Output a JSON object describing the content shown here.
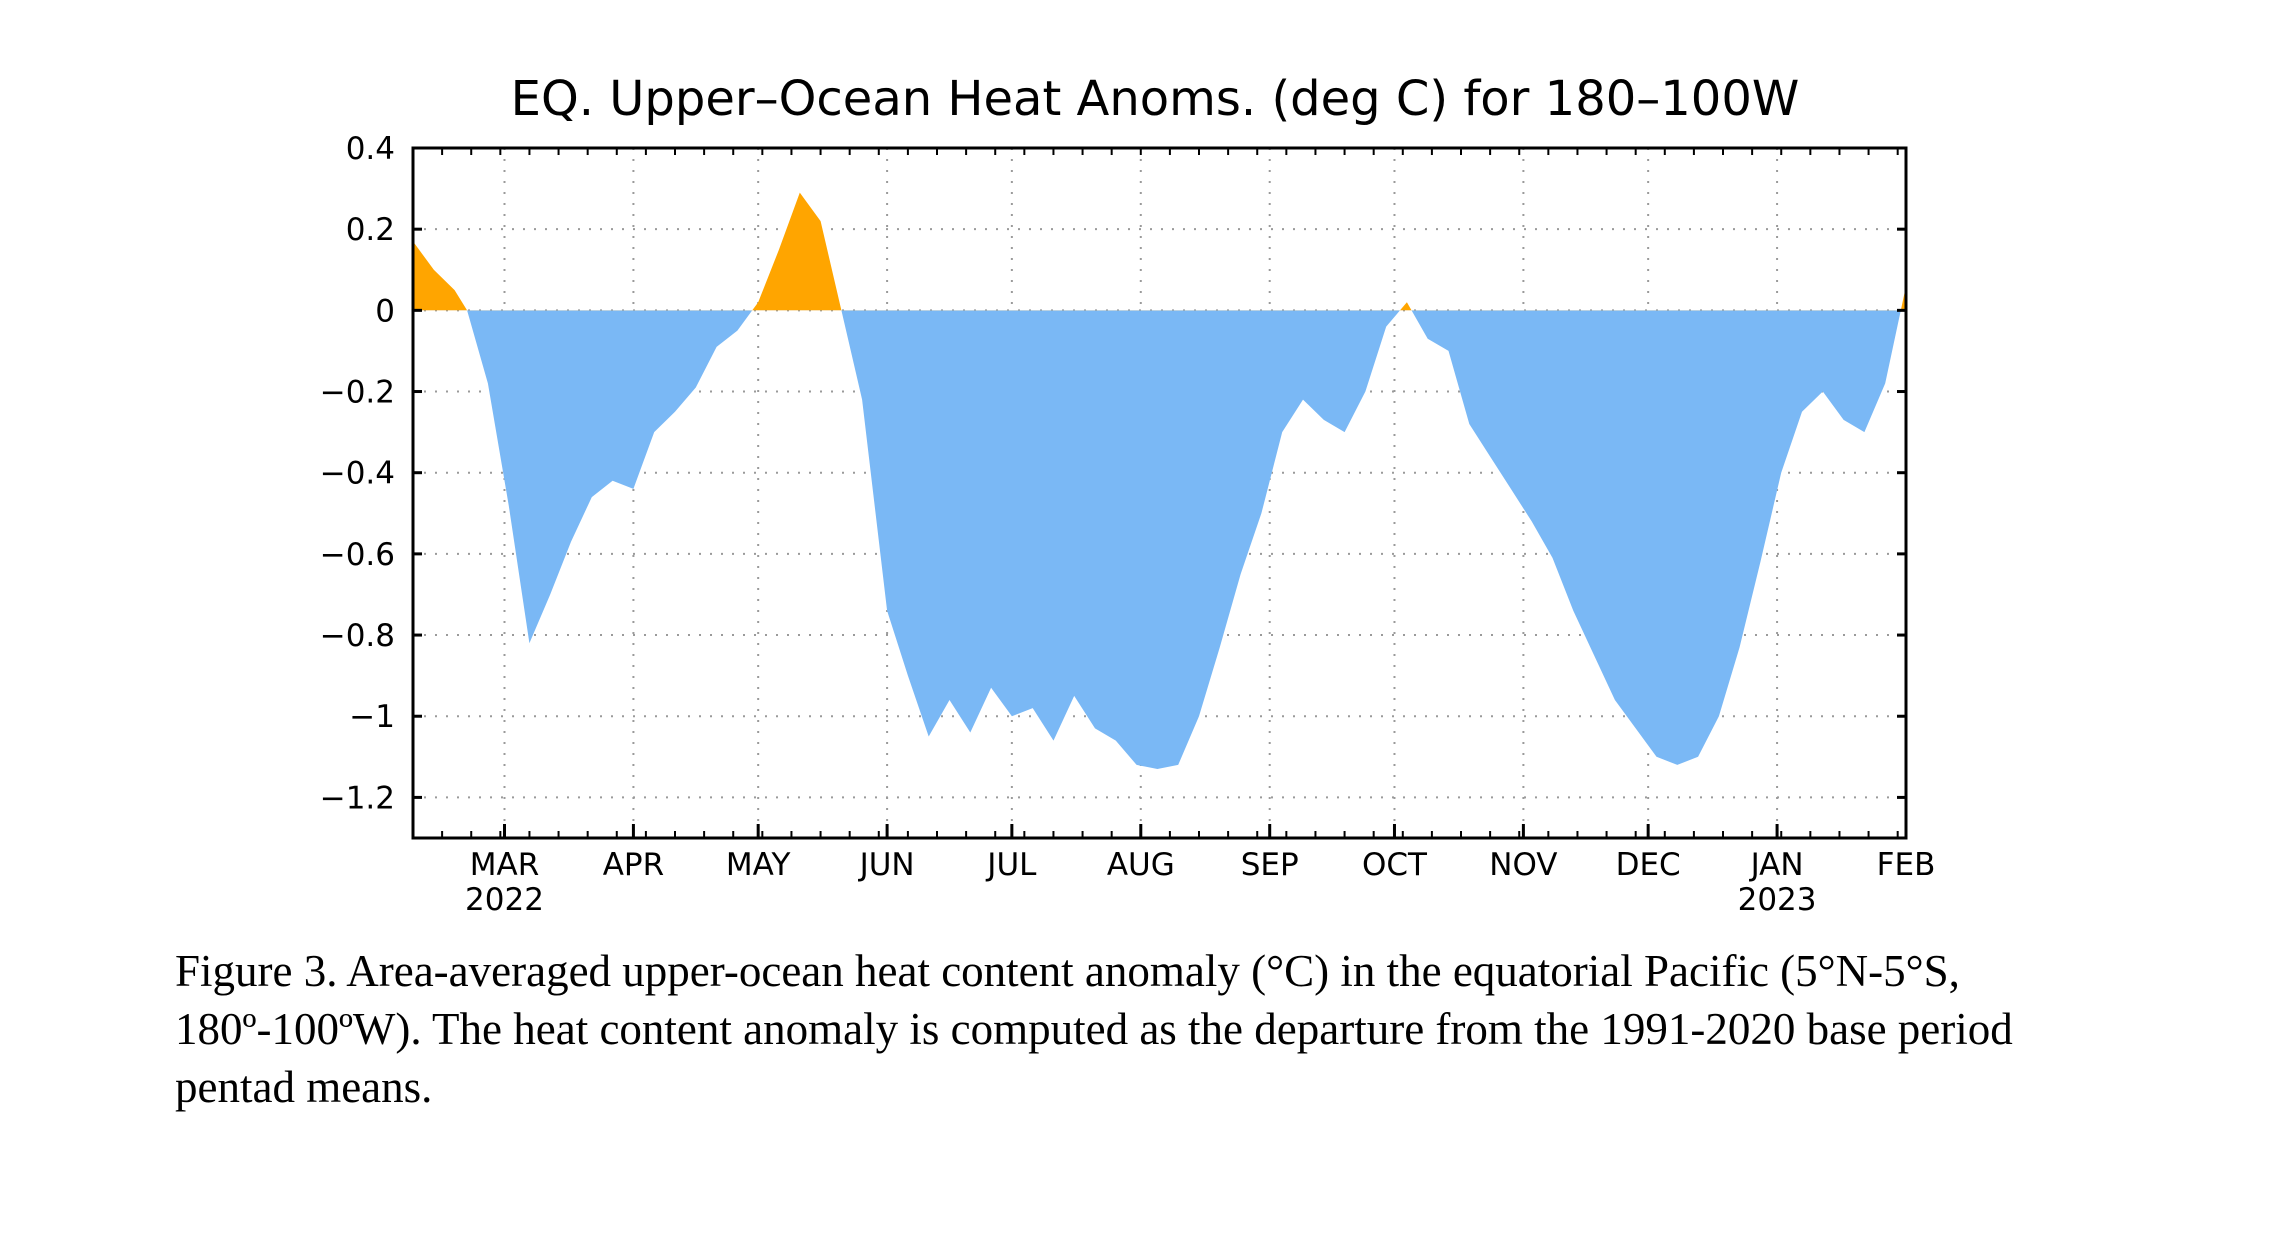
{
  "chart_data": {
    "type": "area",
    "title": "EQ. Upper–Ocean Heat Anoms. (deg C) for 180–100W",
    "xlabel": "",
    "ylabel": "",
    "ylim": [
      -1.3,
      0.4
    ],
    "yticks": [
      0.4,
      0.2,
      0,
      -0.2,
      -0.4,
      -0.6,
      -0.8,
      -1,
      -1.2
    ],
    "ytick_labels": [
      "0.4",
      "0.2",
      "0",
      "−0.2",
      "−0.4",
      "−0.6",
      "−0.8",
      "−1",
      "−1.2"
    ],
    "xlim": [
      "2022-02-07",
      "2023-02-01"
    ],
    "xticks": [
      {
        "date": "2022-03-01",
        "label": "MAR",
        "year": "2022"
      },
      {
        "date": "2022-04-01",
        "label": "APR",
        "year": ""
      },
      {
        "date": "2022-05-01",
        "label": "MAY",
        "year": ""
      },
      {
        "date": "2022-06-01",
        "label": "JUN",
        "year": ""
      },
      {
        "date": "2022-07-01",
        "label": "JUL",
        "year": ""
      },
      {
        "date": "2022-08-01",
        "label": "AUG",
        "year": ""
      },
      {
        "date": "2022-09-01",
        "label": "SEP",
        "year": ""
      },
      {
        "date": "2022-10-01",
        "label": "OCT",
        "year": ""
      },
      {
        "date": "2022-11-01",
        "label": "NOV",
        "year": ""
      },
      {
        "date": "2022-12-01",
        "label": "DEC",
        "year": ""
      },
      {
        "date": "2023-01-01",
        "label": "JAN",
        "year": "2023"
      },
      {
        "date": "2023-02-01",
        "label": "FEB",
        "year": ""
      }
    ],
    "grid": true,
    "positive_color": "#ffa500",
    "negative_color": "#7ab8f5",
    "x": [
      "2022-02-07",
      "2022-02-12",
      "2022-02-17",
      "2022-02-20",
      "2022-02-25",
      "2022-03-02",
      "2022-03-07",
      "2022-03-12",
      "2022-03-17",
      "2022-03-22",
      "2022-03-27",
      "2022-04-01",
      "2022-04-06",
      "2022-04-11",
      "2022-04-16",
      "2022-04-21",
      "2022-04-26",
      "2022-05-01",
      "2022-05-06",
      "2022-05-11",
      "2022-05-16",
      "2022-05-21",
      "2022-05-26",
      "2022-06-01",
      "2022-06-06",
      "2022-06-11",
      "2022-06-16",
      "2022-06-21",
      "2022-06-26",
      "2022-07-01",
      "2022-07-06",
      "2022-07-11",
      "2022-07-16",
      "2022-07-21",
      "2022-07-26",
      "2022-07-31",
      "2022-08-05",
      "2022-08-10",
      "2022-08-15",
      "2022-08-20",
      "2022-08-25",
      "2022-08-30",
      "2022-09-04",
      "2022-09-09",
      "2022-09-14",
      "2022-09-19",
      "2022-09-24",
      "2022-09-29",
      "2022-10-04",
      "2022-10-09",
      "2022-10-14",
      "2022-10-19",
      "2022-10-24",
      "2022-10-29",
      "2022-11-03",
      "2022-11-08",
      "2022-11-13",
      "2022-11-18",
      "2022-11-23",
      "2022-11-28",
      "2022-12-03",
      "2022-12-08",
      "2022-12-13",
      "2022-12-18",
      "2022-12-23",
      "2022-12-28",
      "2023-01-02",
      "2023-01-07",
      "2023-01-12",
      "2023-01-17",
      "2023-01-22",
      "2023-01-27",
      "2023-02-01"
    ],
    "values": [
      0.17,
      0.1,
      0.05,
      0.0,
      -0.18,
      -0.48,
      -0.82,
      -0.7,
      -0.57,
      -0.46,
      -0.42,
      -0.44,
      -0.3,
      -0.25,
      -0.19,
      -0.09,
      -0.05,
      0.02,
      0.15,
      0.29,
      0.22,
      0.0,
      -0.22,
      -0.74,
      -0.9,
      -1.05,
      -0.96,
      -1.04,
      -0.93,
      -1.0,
      -0.98,
      -1.06,
      -0.95,
      -1.03,
      -1.06,
      -1.12,
      -1.13,
      -1.12,
      -1.0,
      -0.83,
      -0.65,
      -0.5,
      -0.3,
      -0.22,
      -0.27,
      -0.3,
      -0.2,
      -0.04,
      0.02,
      -0.07,
      -0.1,
      -0.28,
      -0.36,
      -0.44,
      -0.52,
      -0.61,
      -0.74,
      -0.85,
      -0.96,
      -1.03,
      -1.1,
      -1.12,
      -1.1,
      -1.0,
      -0.83,
      -0.62,
      -0.4,
      -0.25,
      -0.2,
      -0.27,
      -0.3,
      -0.18,
      0.06
    ]
  },
  "caption": "Figure 3. Area-averaged upper-ocean heat content anomaly (°C) in the equatorial Pacific (5°N-5°S, 180º-100ºW). The heat content anomaly is computed as the departure from the 1991-2020 base period pentad means."
}
